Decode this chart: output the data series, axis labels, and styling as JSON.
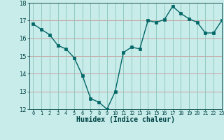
{
  "x": [
    0,
    1,
    2,
    3,
    4,
    5,
    6,
    7,
    8,
    9,
    10,
    11,
    12,
    13,
    14,
    15,
    16,
    17,
    18,
    19,
    20,
    21,
    22,
    23
  ],
  "y": [
    16.8,
    16.5,
    16.2,
    15.6,
    15.4,
    14.9,
    13.9,
    12.6,
    12.4,
    12.0,
    13.0,
    15.2,
    15.5,
    15.4,
    17.0,
    16.9,
    17.05,
    17.8,
    17.4,
    17.1,
    16.9,
    16.3,
    16.3,
    17.0
  ],
  "xlabel": "Humidex (Indice chaleur)",
  "ylim": [
    12,
    18
  ],
  "xlim": [
    -0.5,
    23
  ],
  "yticks": [
    12,
    13,
    14,
    15,
    16,
    17,
    18
  ],
  "xtick_labels": [
    "0",
    "1",
    "2",
    "3",
    "4",
    "5",
    "6",
    "7",
    "8",
    "9",
    "10",
    "11",
    "12",
    "13",
    "14",
    "15",
    "16",
    "17",
    "18",
    "19",
    "20",
    "21",
    "22",
    "23"
  ],
  "line_color": "#006666",
  "marker_color": "#006666",
  "bg_color": "#c8ecea",
  "grid_color_h": "#c8a0a0",
  "grid_color_v": "#90c8c0",
  "axis_label_color": "#004444",
  "tick_color": "#004444",
  "xlabel_fontsize": 7,
  "ytick_fontsize": 6,
  "xtick_fontsize": 5
}
